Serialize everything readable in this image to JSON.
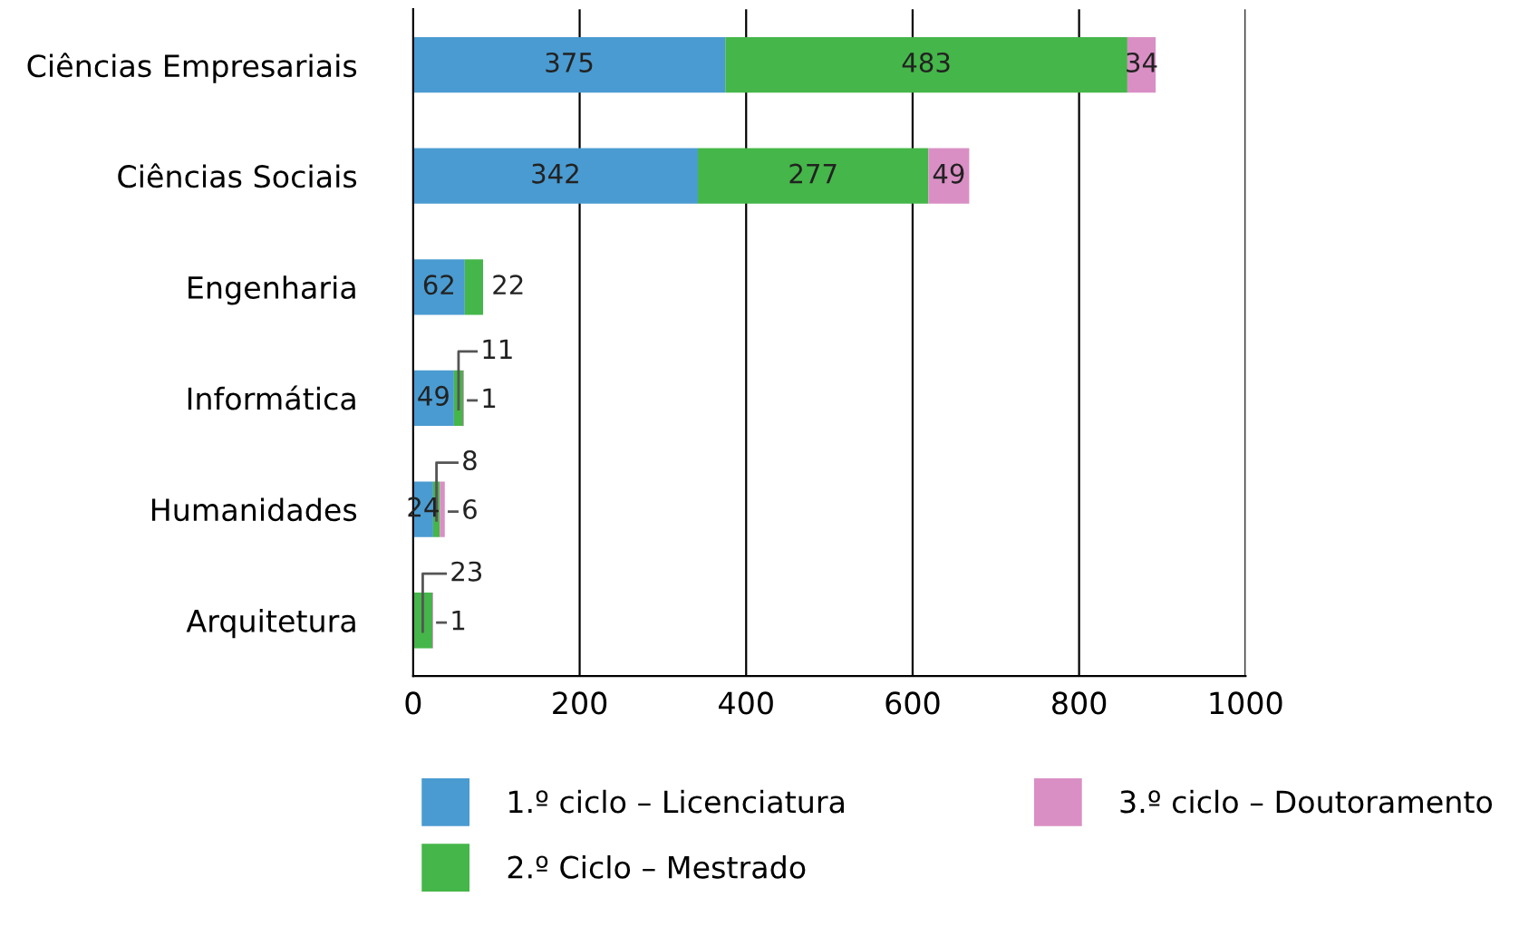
{
  "chart_data": {
    "type": "bar",
    "orientation": "horizontal",
    "stacked": true,
    "categories": [
      "Ciências Empresariais",
      "Ciências Sociais",
      "Engenharia",
      "Informática",
      "Humanidades",
      "Arquitetura"
    ],
    "series": [
      {
        "name": "1.º ciclo – Licenciatura",
        "color": "#4a9bd1",
        "values": [
          375,
          342,
          62,
          49,
          24,
          null
        ]
      },
      {
        "name": "2.º Ciclo – Mestrado",
        "color": "#45b649",
        "values": [
          483,
          277,
          22,
          11,
          8,
          23
        ]
      },
      {
        "name": "3.º ciclo – Doutoramento",
        "color": "#d98fc4",
        "values": [
          34,
          49,
          null,
          1,
          6,
          1
        ]
      }
    ],
    "xlim": [
      0,
      1000
    ],
    "xticks": [
      0,
      200,
      400,
      600,
      800,
      1000
    ],
    "grid": "x",
    "legend": "bottom",
    "data_labels": true
  }
}
